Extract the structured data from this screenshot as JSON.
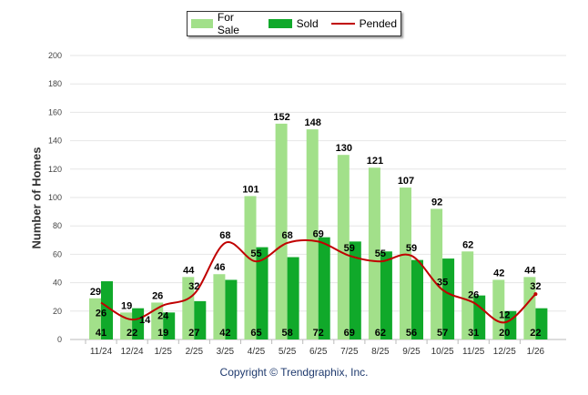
{
  "chart_data": {
    "type": "bar",
    "ylabel": "Number of Homes",
    "ylim": [
      0,
      200
    ],
    "yticks": [
      0,
      20,
      40,
      60,
      80,
      100,
      120,
      140,
      160,
      180,
      200
    ],
    "categories": [
      "11/24",
      "12/24",
      "1/25",
      "2/25",
      "3/25",
      "4/25",
      "5/25",
      "6/25",
      "7/25",
      "8/25",
      "9/25",
      "10/25",
      "11/25",
      "12/25",
      "1/26"
    ],
    "series": [
      {
        "name": "For Sale",
        "type": "bar",
        "color": "#a2e08a",
        "values": [
          29,
          19,
          26,
          44,
          46,
          101,
          152,
          148,
          130,
          121,
          107,
          92,
          62,
          42,
          44
        ]
      },
      {
        "name": "Sold",
        "type": "bar",
        "color": "#10a92a",
        "values": [
          41,
          22,
          19,
          27,
          42,
          65,
          58,
          72,
          69,
          62,
          56,
          57,
          31,
          20,
          22
        ]
      },
      {
        "name": "Pended",
        "type": "line",
        "color": "#c00000",
        "values": [
          26,
          14,
          24,
          32,
          68,
          55,
          68,
          69,
          59,
          55,
          59,
          35,
          26,
          12,
          32
        ]
      }
    ],
    "legend": "top",
    "grid": true
  },
  "copyright": "Copyright © Trendgraphix, Inc."
}
